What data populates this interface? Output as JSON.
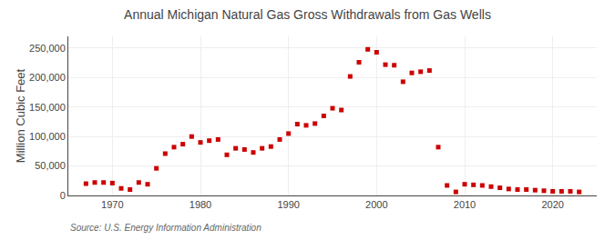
{
  "chart_data": {
    "type": "scatter",
    "title": "Annual Michigan Natural Gas Gross Withdrawals from Gas Wells",
    "ylabel": "Million Cubic Feet",
    "annotations": [
      "Source: U.S. Energy Information Administration"
    ],
    "x": [
      1967,
      1968,
      1969,
      1970,
      1971,
      1972,
      1973,
      1974,
      1975,
      1976,
      1977,
      1978,
      1979,
      1980,
      1981,
      1982,
      1983,
      1984,
      1985,
      1986,
      1987,
      1988,
      1989,
      1990,
      1991,
      1992,
      1993,
      1994,
      1995,
      1996,
      1997,
      1998,
      1999,
      2000,
      2001,
      2002,
      2003,
      2004,
      2005,
      2006,
      2007,
      2008,
      2009,
      2010,
      2011,
      2012,
      2013,
      2014,
      2015,
      2016,
      2017,
      2018,
      2019,
      2020,
      2021,
      2022,
      2023
    ],
    "values": [
      20000,
      22000,
      22000,
      21000,
      12000,
      10000,
      22000,
      19000,
      46000,
      71000,
      82000,
      87000,
      100000,
      90000,
      93000,
      95000,
      69000,
      80000,
      78000,
      73000,
      80000,
      83000,
      95000,
      105000,
      121000,
      119000,
      122000,
      135000,
      148000,
      145000,
      202000,
      226000,
      248000,
      243000,
      222000,
      221000,
      193000,
      208000,
      210000,
      212000,
      82000,
      17000,
      6000,
      19000,
      18000,
      17000,
      15000,
      13000,
      11000,
      10000,
      10000,
      9000,
      8000,
      7000,
      7000,
      7000,
      6000
    ],
    "color": "#cc0000",
    "marker": "square",
    "xlim": [
      1965,
      2025
    ],
    "xticks": [
      1970,
      1980,
      1990,
      2000,
      2010,
      2020
    ],
    "ylim": [
      0,
      270000
    ],
    "yticks": [
      0,
      {
        "value": 50000,
        "label": "50,000"
      },
      {
        "value": 100000,
        "label": "100,000"
      },
      {
        "value": 150000,
        "label": "150,000"
      },
      {
        "value": 200000,
        "label": "200,000"
      },
      {
        "value": 250000,
        "label": "250,000"
      }
    ],
    "grid": true
  }
}
